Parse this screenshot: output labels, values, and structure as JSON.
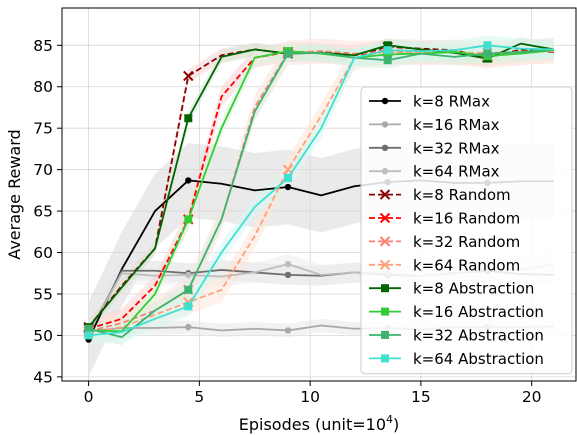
{
  "chart_data": {
    "type": "line",
    "xlabel": "Episodes (unit=10",
    "xlabel_sup": "4",
    "xlabel_close": ")",
    "ylabel": "Average Reward",
    "xlim": [
      -1.2,
      22
    ],
    "ylim": [
      44.5,
      89.5
    ],
    "xticks": [
      0,
      5,
      10,
      15,
      20
    ],
    "yticks": [
      45,
      50,
      55,
      60,
      65,
      70,
      75,
      80,
      85
    ],
    "grid": true,
    "legend_position": "center-right",
    "series": [
      {
        "name": "k=8 RMax",
        "color": "#000000",
        "marker": "dot",
        "dash": "solid",
        "x": [
          0,
          1.5,
          3,
          4.5,
          6,
          7.5,
          9,
          10.5,
          12,
          13.5,
          15,
          16.5,
          18,
          19.5,
          21
        ],
        "y": [
          49.5,
          58,
          65,
          68.7,
          68.3,
          67.5,
          67.9,
          66.9,
          68,
          68.5,
          68.7,
          68.4,
          68.4,
          68.6,
          68.6
        ],
        "markers_at": [
          0,
          4.5,
          9,
          13.5,
          18
        ],
        "band": 4.5,
        "band_color": "#d9d9d9"
      },
      {
        "name": "k=16 RMax",
        "color": "#a9a9a9",
        "marker": "dot",
        "dash": "solid",
        "x": [
          0,
          1.5,
          3,
          4.5,
          6,
          7.5,
          9,
          10.5,
          12,
          13.5,
          15,
          16.5,
          18,
          19.5,
          21
        ],
        "y": [
          50.5,
          50.9,
          50.9,
          51,
          50.6,
          50.8,
          50.6,
          51.2,
          50.8,
          50.9,
          50.7,
          51,
          51,
          51,
          51.1
        ],
        "markers_at": [
          0,
          4.5,
          9,
          13.5,
          18
        ],
        "band": 0.8,
        "band_color": "#e8e8e8"
      },
      {
        "name": "k=32 RMax",
        "color": "#6e6e6e",
        "marker": "dot",
        "dash": "solid",
        "x": [
          0,
          1.5,
          3,
          4.5,
          6,
          7.5,
          9,
          10.5,
          12,
          13.5,
          15,
          16.5,
          18,
          19.5,
          21
        ],
        "y": [
          50.2,
          57.8,
          57.8,
          57.5,
          57.9,
          57.6,
          57.3,
          57.2,
          57.6,
          57.3,
          57.2,
          57.5,
          57.8,
          57.4,
          57.3
        ],
        "markers_at": [
          0,
          4.5,
          9,
          13.5,
          18
        ],
        "band": 1.2,
        "band_color": "#e0e0e0"
      },
      {
        "name": "k=64 RMax",
        "color": "#bdbdbd",
        "marker": "dot",
        "dash": "solid",
        "x": [
          0,
          1.5,
          3,
          4.5,
          6,
          7.5,
          9,
          10.5,
          12,
          13.5,
          15,
          16.5,
          18,
          19.5,
          21
        ],
        "y": [
          50.3,
          57.5,
          57.2,
          57.3,
          57.1,
          57.6,
          58.6,
          57.3,
          57.6,
          57.5,
          57.2,
          57.4,
          58.1,
          57.9,
          58.6
        ],
        "markers_at": [
          0,
          4.5,
          9,
          13.5,
          18
        ],
        "band": 1.2,
        "band_color": "#ececec"
      },
      {
        "name": "k=8 Random",
        "color": "#8b0000",
        "marker": "x",
        "dash": "dashed",
        "x": [
          0,
          1.5,
          3,
          4.5,
          6,
          7.5,
          9,
          10.5,
          12,
          13.5,
          15,
          16.5,
          18,
          19.5,
          21
        ],
        "y": [
          51,
          56,
          60.5,
          81.3,
          83.8,
          84.5,
          84,
          84.2,
          83.8,
          84.8,
          84.6,
          84.4,
          83.5,
          84.5,
          84.2
        ],
        "markers_at": [
          0,
          4.5,
          9,
          13.5,
          18
        ],
        "band": 0.8,
        "band_color": "#f4d2d2"
      },
      {
        "name": "k=16 Random",
        "color": "#ff0000",
        "marker": "x",
        "dash": "dashed",
        "x": [
          0,
          1.5,
          3,
          4.5,
          6,
          7.5,
          9,
          10.5,
          12,
          13.5,
          15,
          16.5,
          18,
          19.5,
          21
        ],
        "y": [
          50.8,
          52,
          56,
          64,
          78.8,
          83.5,
          84.2,
          84.1,
          83.8,
          84.4,
          84.3,
          84.2,
          83.6,
          84.3,
          84.4
        ],
        "markers_at": [
          0,
          4.5,
          9,
          13.5,
          18
        ],
        "band": 1.2,
        "band_color": "#fcd2d2"
      },
      {
        "name": "k=32 Random",
        "color": "#fa8072",
        "marker": "x",
        "dash": "dashed",
        "x": [
          0,
          1.5,
          3,
          4.5,
          6,
          7.5,
          9,
          10.5,
          12,
          13.5,
          15,
          16.5,
          18,
          19.5,
          21
        ],
        "y": [
          50.5,
          51.5,
          53,
          55.5,
          64,
          77.5,
          84.1,
          84.3,
          84,
          84.2,
          84.1,
          84.2,
          83.7,
          84.1,
          84.4
        ],
        "markers_at": [
          0,
          4.5,
          9,
          13.5,
          18
        ],
        "band": 1.5,
        "band_color": "#fde0dc"
      },
      {
        "name": "k=64 Random",
        "color": "#ffa07a",
        "marker": "x",
        "dash": "dashed",
        "x": [
          0,
          1.5,
          3,
          4.5,
          6,
          7.5,
          9,
          10.5,
          12,
          13.5,
          15,
          16.5,
          18,
          19.5,
          21
        ],
        "y": [
          50.3,
          51,
          52.5,
          54,
          55.5,
          62,
          70,
          76.5,
          83.5,
          84.3,
          84.2,
          84.1,
          84.1,
          84.2,
          84.3
        ],
        "markers_at": [
          0,
          4.5,
          9,
          13.5,
          18
        ],
        "band": 1.5,
        "band_color": "#fee6d9"
      },
      {
        "name": "k=8 Abstraction",
        "color": "#006400",
        "marker": "square",
        "dash": "solid",
        "x": [
          0,
          1.5,
          3,
          4.5,
          6,
          7.5,
          9,
          10.5,
          12,
          13.5,
          15,
          16.5,
          18,
          19.5,
          21
        ],
        "y": [
          51,
          55.8,
          60.5,
          76.2,
          83.6,
          84.5,
          84,
          84.1,
          83.8,
          85,
          84.5,
          84.1,
          83.4,
          85.2,
          84.5
        ],
        "markers_at": [
          0,
          4.5,
          9,
          13.5,
          18
        ],
        "band": 0.8,
        "band_color": "#d6ead6"
      },
      {
        "name": "k=16 Abstraction",
        "color": "#32cd32",
        "marker": "square",
        "dash": "solid",
        "x": [
          0,
          1.5,
          3,
          4.5,
          6,
          7.5,
          9,
          10.5,
          12,
          13.5,
          15,
          16.5,
          18,
          19.5,
          21
        ],
        "y": [
          50.6,
          50.5,
          55,
          64,
          75,
          83.5,
          84.3,
          84,
          83.5,
          83.9,
          84,
          84.2,
          83.7,
          84,
          84.4
        ],
        "markers_at": [
          0,
          4.5,
          9,
          13.5,
          18
        ],
        "band": 1.0,
        "band_color": "#dcf5dc"
      },
      {
        "name": "k=32 Abstraction",
        "color": "#3cb371",
        "marker": "square",
        "dash": "solid",
        "x": [
          0,
          1.5,
          3,
          4.5,
          6,
          7.5,
          9,
          10.5,
          12,
          13.5,
          15,
          16.5,
          18,
          19.5,
          21
        ],
        "y": [
          50.8,
          49.8,
          53,
          55.5,
          64,
          77,
          84,
          84.1,
          83.5,
          83.2,
          84,
          83.6,
          84,
          84.2,
          84.5
        ],
        "markers_at": [
          0,
          4.5,
          9,
          13.5,
          18
        ],
        "band": 1.0,
        "band_color": "#d9f0e2"
      },
      {
        "name": "k=64 Abstraction",
        "color": "#40e0d0",
        "marker": "square",
        "dash": "solid",
        "x": [
          0,
          1.5,
          3,
          4.5,
          6,
          7.5,
          9,
          10.5,
          12,
          13.5,
          15,
          16.5,
          18,
          19.5,
          21
        ],
        "y": [
          50,
          50.4,
          52,
          53.5,
          60,
          65.5,
          69,
          75,
          83.5,
          84.4,
          84.3,
          84.4,
          85,
          84.6,
          84.5
        ],
        "markers_at": [
          0,
          4.5,
          9,
          13.5,
          18
        ],
        "band": 1.2,
        "band_color": "#d6f7f3"
      }
    ]
  }
}
